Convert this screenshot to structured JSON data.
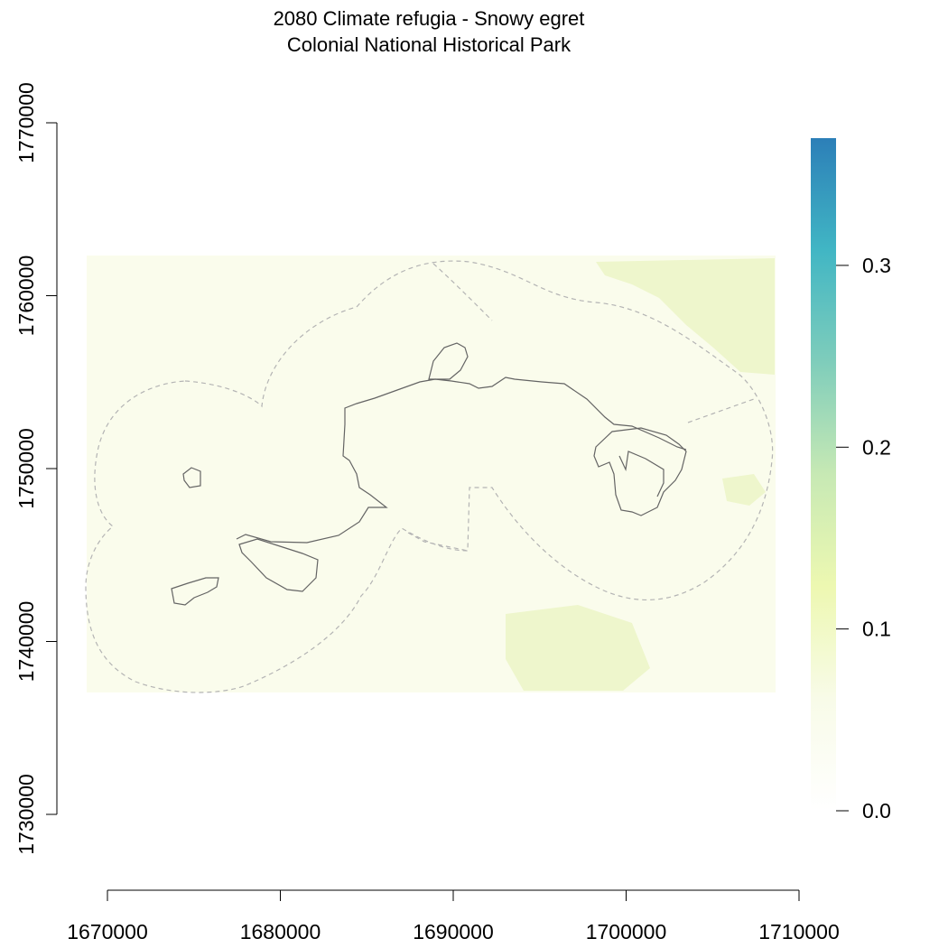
{
  "map": {
    "title_line1": "2080 Climate refugia - Snowy egret",
    "title_line2": "Colonial National Historical Park",
    "x_axis": {
      "ticks": [
        1670000,
        1680000,
        1690000,
        1700000,
        1710000
      ],
      "range": [
        1670000,
        1710000
      ]
    },
    "y_axis": {
      "ticks": [
        1730000,
        1740000,
        1750000,
        1760000,
        1770000
      ],
      "range": [
        1730000,
        1770000
      ]
    },
    "legend": {
      "ticks": [
        "0.0",
        "0.1",
        "0.2",
        "0.3"
      ],
      "tick_values": [
        0.0,
        0.1,
        0.2,
        0.3
      ],
      "range": [
        0,
        0.37
      ],
      "colors": [
        "#ffffff",
        "#f8fbe8",
        "#edf8b1",
        "#c7e9b4",
        "#7fcdbb",
        "#41b6c4",
        "#2c7fb8"
      ]
    },
    "colors": {
      "raster_fill": "#fafcec",
      "raster_patch": "#eef6cc",
      "buffer_outline": "#b4b4b4",
      "park_outline": "#646464"
    }
  }
}
